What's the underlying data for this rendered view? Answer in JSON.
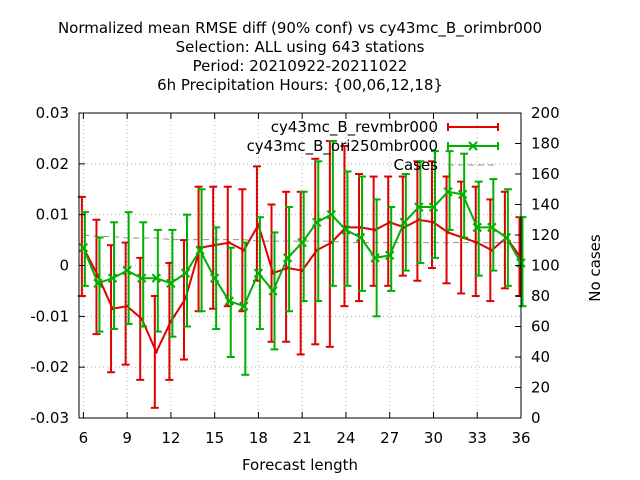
{
  "chart_data": {
    "type": "line",
    "title": [
      "Normalized mean RMSE diff (90% conf) vs cy43mc_B_orimbr000",
      "Selection: ALL using   643 stations",
      "Period: 20210922-20211022",
      "6h Precipitation   Hours: {00,06,12,18}"
    ],
    "xlabel": "Forecast length",
    "ylabel_right": "No cases",
    "xlim": [
      5.7,
      36
    ],
    "ylim": [
      -0.03,
      0.03
    ],
    "y2lim": [
      0,
      200
    ],
    "xticks": [
      "6",
      "9",
      "12",
      "15",
      "18",
      "21",
      "24",
      "27",
      "30",
      "33",
      "36"
    ],
    "yticks": [
      "0.03",
      "0.02",
      "0.01",
      "0",
      "-0.01",
      "-0.02",
      "-0.03"
    ],
    "y2ticks": [
      "200",
      "180",
      "160",
      "140",
      "120",
      "100",
      "80",
      "60",
      "40",
      "20",
      "0"
    ],
    "grid": true,
    "legend_position": "top-right",
    "x": [
      6,
      7,
      8,
      9,
      10,
      11,
      12,
      13,
      14,
      15,
      16,
      17,
      18,
      19,
      20,
      21,
      22,
      23,
      24,
      25,
      26,
      27,
      28,
      29,
      30,
      31,
      32,
      33,
      34,
      35,
      36
    ],
    "series": [
      {
        "name": "cy43mc_B_revmbr000",
        "color": "#e00000",
        "values": [
          0.0035,
          -0.002,
          -0.0085,
          -0.008,
          -0.0105,
          -0.017,
          -0.011,
          -0.0065,
          0.0035,
          0.004,
          0.0045,
          0.003,
          0.008,
          -0.0015,
          -0.0005,
          -0.001,
          0.003,
          0.0045,
          0.0075,
          0.0075,
          0.007,
          0.0085,
          0.0075,
          0.009,
          0.0085,
          0.0065,
          0.0055,
          0.0045,
          0.003,
          0.0055,
          0.0015
        ],
        "lower": [
          -0.006,
          -0.0135,
          -0.021,
          -0.0195,
          -0.0225,
          -0.028,
          -0.0225,
          -0.0185,
          -0.009,
          -0.0085,
          -0.008,
          -0.009,
          -0.003,
          -0.015,
          -0.015,
          -0.0175,
          -0.0155,
          -0.016,
          -0.008,
          -0.007,
          -0.004,
          -0.004,
          -0.002,
          -0.003,
          -0.0005,
          -0.0035,
          -0.0055,
          -0.006,
          -0.007,
          -0.0045,
          -0.006
        ],
        "upper": [
          0.0135,
          0.009,
          0.004,
          0.0045,
          0.0015,
          -0.006,
          0.0005,
          0.005,
          0.0155,
          0.0155,
          0.0155,
          0.015,
          0.0195,
          0.012,
          0.0145,
          0.0145,
          0.021,
          0.0245,
          0.0235,
          0.018,
          0.0175,
          0.0175,
          0.0175,
          0.0205,
          0.0205,
          0.0175,
          0.0165,
          0.0155,
          0.013,
          0.0145,
          0.0095
        ]
      },
      {
        "name": "cy43mc_B_ori250mbr000",
        "color": "#00b000",
        "values": [
          0.0035,
          -0.0035,
          -0.0025,
          -0.001,
          -0.0025,
          -0.0025,
          -0.0035,
          -0.0015,
          0.003,
          -0.0025,
          -0.007,
          -0.008,
          -0.0015,
          -0.005,
          0.0015,
          0.0045,
          0.0085,
          0.01,
          0.007,
          0.0055,
          0.0015,
          0.002,
          0.0085,
          0.0115,
          0.0115,
          0.0145,
          0.014,
          0.0075,
          0.0075,
          0.0055,
          0.0005
        ],
        "lower": [
          -0.004,
          -0.013,
          -0.0125,
          -0.0115,
          -0.012,
          -0.013,
          -0.014,
          -0.012,
          -0.009,
          -0.0125,
          -0.018,
          -0.0215,
          -0.0125,
          -0.0165,
          -0.009,
          -0.007,
          -0.007,
          -0.004,
          -0.004,
          -0.005,
          -0.01,
          -0.005,
          -0.001,
          0.0005,
          0.0015,
          0.007,
          0.0055,
          -0.002,
          -0.001,
          -0.004,
          -0.008
        ],
        "upper": [
          0.0105,
          0.0055,
          0.0085,
          0.0105,
          0.0085,
          0.007,
          0.007,
          0.01,
          0.015,
          0.0075,
          0.0035,
          0.0045,
          0.0095,
          0.0065,
          0.0115,
          0.0145,
          0.0205,
          0.0245,
          0.0185,
          0.0175,
          0.013,
          0.0115,
          0.018,
          0.0205,
          0.0225,
          0.0225,
          0.022,
          0.0165,
          0.017,
          0.015,
          0.0095
        ]
      }
    ],
    "cases": {
      "name": "Cases",
      "color": "#909090",
      "values": [
        120,
        119,
        119,
        118,
        118,
        118,
        117,
        117,
        117,
        117,
        117,
        117,
        116,
        116,
        116,
        116,
        116,
        116,
        115,
        115,
        115,
        115,
        115,
        115,
        115,
        115,
        115,
        115,
        115,
        115,
        115
      ]
    }
  }
}
